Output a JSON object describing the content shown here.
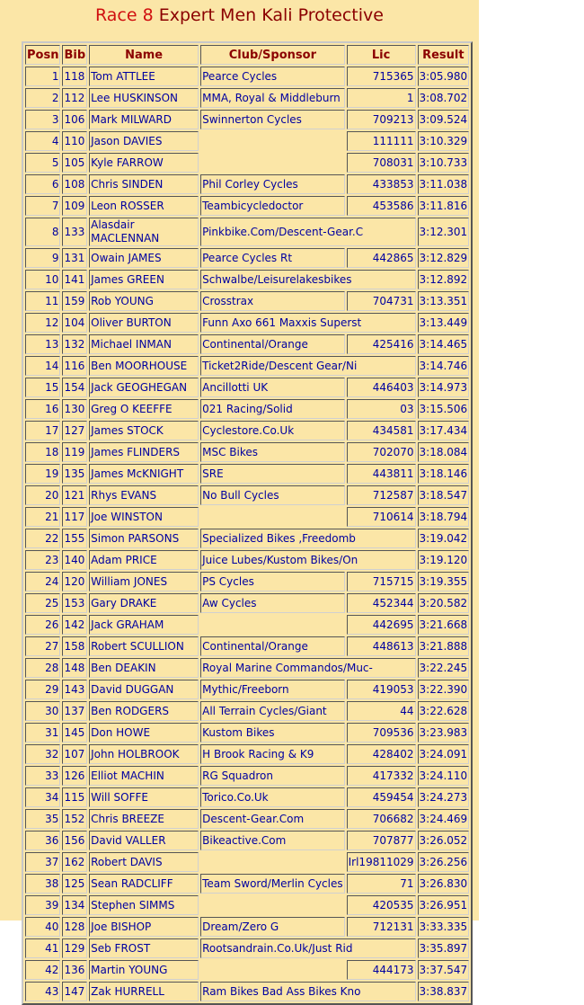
{
  "title_race": "Race 8",
  "title_rest": "Expert Men Kali Protective",
  "columns": [
    "Posn",
    "Bib",
    "Name",
    "Club/Sponsor",
    "Lic",
    "Result"
  ],
  "rows": [
    [
      "1",
      "118",
      "Tom ATTLEE",
      "Pearce Cycles",
      "715365",
      "3:05.980"
    ],
    [
      "2",
      "112",
      "Lee HUSKINSON",
      "MMA, Royal & Middleburn",
      "1",
      "3:08.702"
    ],
    [
      "3",
      "106",
      "Mark MILWARD",
      "Swinnerton Cycles",
      "709213",
      "3:09.524"
    ],
    [
      "4",
      "110",
      "Jason DAVIES",
      "",
      "111111",
      "3:10.329"
    ],
    [
      "5",
      "105",
      "Kyle FARROW",
      "",
      "708031",
      "3:10.733"
    ],
    [
      "6",
      "108",
      "Chris SINDEN",
      "Phil Corley Cycles",
      "433853",
      "3:11.038"
    ],
    [
      "7",
      "109",
      "Leon ROSSER",
      "Teambicycledoctor",
      "453586",
      "3:11.816"
    ],
    [
      "8",
      "133",
      "Alasdair MACLENNAN",
      "Pinkbike.Com/Descent-Gear.C",
      "",
      "3:12.301"
    ],
    [
      "9",
      "131",
      "Owain JAMES",
      "Pearce Cycles Rt",
      "442865",
      "3:12.829"
    ],
    [
      "10",
      "141",
      "James GREEN",
      "Schwalbe/Leisurelakesbikes",
      "",
      "3:12.892"
    ],
    [
      "11",
      "159",
      "Rob YOUNG",
      "Crosstrax",
      "704731",
      "3:13.351"
    ],
    [
      "12",
      "104",
      "Oliver BURTON",
      "Funn Axo 661 Maxxis Superst",
      "",
      "3:13.449"
    ],
    [
      "13",
      "132",
      "Michael INMAN",
      "Continental/Orange",
      "425416",
      "3:14.465"
    ],
    [
      "14",
      "116",
      "Ben MOORHOUSE",
      "Ticket2Ride/Descent Gear/Ni",
      "",
      "3:14.746"
    ],
    [
      "15",
      "154",
      "Jack GEOGHEGAN",
      "Ancillotti UK",
      "446403",
      "3:14.973"
    ],
    [
      "16",
      "130",
      "Greg O KEEFFE",
      "021 Racing/Solid",
      "03",
      "3:15.506"
    ],
    [
      "17",
      "127",
      "James STOCK",
      "Cyclestore.Co.Uk",
      "434581",
      "3:17.434"
    ],
    [
      "18",
      "119",
      "James FLINDERS",
      "MSC Bikes",
      "702070",
      "3:18.084"
    ],
    [
      "19",
      "135",
      "James McKNIGHT",
      "SRE",
      "443811",
      "3:18.146"
    ],
    [
      "20",
      "121",
      "Rhys EVANS",
      "No Bull Cycles",
      "712587",
      "3:18.547"
    ],
    [
      "21",
      "117",
      "Joe WINSTON",
      "",
      "710614",
      "3:18.794"
    ],
    [
      "22",
      "155",
      "Simon PARSONS",
      "Specialized Bikes ,Freedomb",
      "",
      "3:19.042"
    ],
    [
      "23",
      "140",
      "Adam PRICE",
      "Juice Lubes/Kustom Bikes/On",
      "",
      "3:19.120"
    ],
    [
      "24",
      "120",
      "William JONES",
      "PS Cycles",
      "715715",
      "3:19.355"
    ],
    [
      "25",
      "153",
      "Gary DRAKE",
      "Aw Cycles",
      "452344",
      "3:20.582"
    ],
    [
      "26",
      "142",
      "Jack GRAHAM",
      "",
      "442695",
      "3:21.668"
    ],
    [
      "27",
      "158",
      "Robert SCULLION",
      "Continental/Orange",
      "448613",
      "3:21.888"
    ],
    [
      "28",
      "148",
      "Ben DEAKIN",
      "Royal Marine Commandos/Muc-",
      "",
      "3:22.245"
    ],
    [
      "29",
      "143",
      "David DUGGAN",
      "Mythic/Freeborn",
      "419053",
      "3:22.390"
    ],
    [
      "30",
      "137",
      "Ben RODGERS",
      "All Terrain Cycles/Giant",
      "44",
      "3:22.628"
    ],
    [
      "31",
      "145",
      "Don HOWE",
      "Kustom Bikes",
      "709536",
      "3:23.983"
    ],
    [
      "32",
      "107",
      "John HOLBROOK",
      "H Brook Racing & K9",
      "428402",
      "3:24.091"
    ],
    [
      "33",
      "126",
      "Elliot MACHIN",
      "RG Squadron",
      "417332",
      "3:24.110"
    ],
    [
      "34",
      "115",
      "Will SOFFE",
      "Torico.Co.Uk",
      "459454",
      "3:24.273"
    ],
    [
      "35",
      "152",
      "Chris BREEZE",
      "Descent-Gear.Com",
      "706682",
      "3:24.469"
    ],
    [
      "36",
      "156",
      "David VALLER",
      "Bikeactive.Com",
      "707877",
      "3:26.052"
    ],
    [
      "37",
      "162",
      "Robert DAVIS",
      "",
      "Irl19811029",
      "3:26.256"
    ],
    [
      "38",
      "125",
      "Sean RADCLIFF",
      "Team Sword/Merlin Cycles",
      "71",
      "3:26.830"
    ],
    [
      "39",
      "134",
      "Stephen SIMMS",
      "",
      "420535",
      "3:26.951"
    ],
    [
      "40",
      "128",
      "Joe BISHOP",
      "Dream/Zero G",
      "712131",
      "3:33.335"
    ],
    [
      "41",
      "129",
      "Seb FROST",
      "Rootsandrain.Co.Uk/Just Rid",
      "",
      "3:35.897"
    ],
    [
      "42",
      "136",
      "Martin YOUNG",
      "",
      "444173",
      "3:37.547"
    ],
    [
      "43",
      "147",
      "Zak HURRELL",
      "Ram Bikes Bad Ass Bikes Kno",
      "",
      "3:38.837"
    ]
  ]
}
